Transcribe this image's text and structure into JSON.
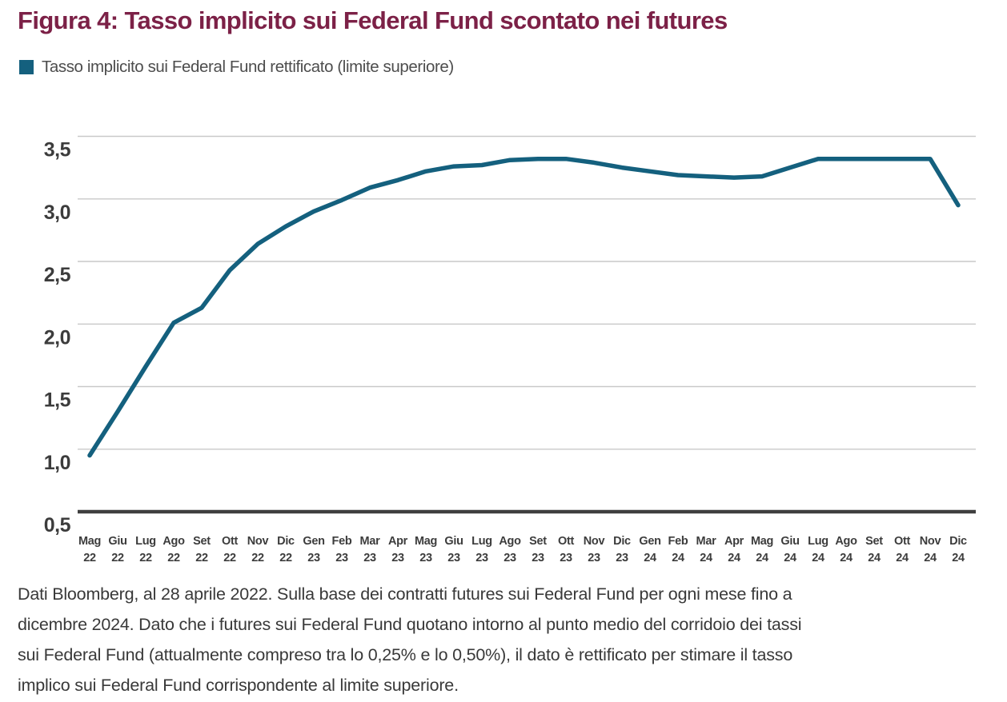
{
  "figure": {
    "title": "Figura 4: Tasso implicito sui Federal Fund scontato nei futures",
    "legend_label": "Tasso implicito sui Federal Fund rettificato (limite superiore)",
    "footnote_lines": [
      "Dati Bloomberg, al 28 aprile 2022. Sulla base dei contratti futures sui Federal Fund per ogni mese fino a",
      "dicembre 2024. Dato che i futures sui Federal Fund quotano intorno al punto medio del corridoio dei tassi",
      "sui Federal Fund (attualmente compreso tra lo 0,25% e lo 0,50%), il dato è rettificato per stimare il tasso",
      "implico sui Federal Fund corrispondente al limite superiore."
    ],
    "colors": {
      "title_accent": "#7c2147",
      "line": "#14607e",
      "axis_text": "#3c3c3c",
      "gridline": "#c9c9c9",
      "axis_line": "#3f3f3f",
      "footnote_text": "#393939"
    }
  },
  "chart_data": {
    "type": "line",
    "title": "Figura 4: Tasso implicito sui Federal Fund scontato nei futures",
    "xlabel": "",
    "ylabel": "",
    "ylim": [
      0.5,
      3.5
    ],
    "y_ticks": [
      3.5,
      3.0,
      2.5,
      2.0,
      1.5,
      1.0,
      0.5
    ],
    "decimal_separator": ",",
    "grid": true,
    "legend_position": "top-left",
    "categories": [
      "Mag 22",
      "Giu 22",
      "Lug 22",
      "Ago 22",
      "Set 22",
      "Ott 22",
      "Nov 22",
      "Dic 22",
      "Gen 23",
      "Feb 23",
      "Mar 23",
      "Apr 23",
      "Mag 23",
      "Giu 23",
      "Lug 23",
      "Ago 23",
      "Set 23",
      "Ott 23",
      "Nov 23",
      "Dic 23",
      "Gen 24",
      "Feb 24",
      "Mar 24",
      "Apr 24",
      "Mag 24",
      "Giu 24",
      "Lug 24",
      "Ago 24",
      "Set 24",
      "Ott 24",
      "Nov 24",
      "Dic 24"
    ],
    "series": [
      {
        "name": "Tasso implicito sui Federal Fund rettificato (limite superiore)",
        "color": "#14607e",
        "values": [
          0.95,
          1.3,
          1.66,
          2.01,
          2.13,
          2.43,
          2.64,
          2.78,
          2.9,
          2.99,
          3.09,
          3.15,
          3.22,
          3.26,
          3.27,
          3.31,
          3.32,
          3.32,
          3.29,
          3.25,
          3.22,
          3.19,
          3.18,
          3.17,
          3.18,
          3.25,
          3.32,
          3.32,
          3.32,
          3.32,
          3.32,
          2.95
        ]
      }
    ]
  }
}
